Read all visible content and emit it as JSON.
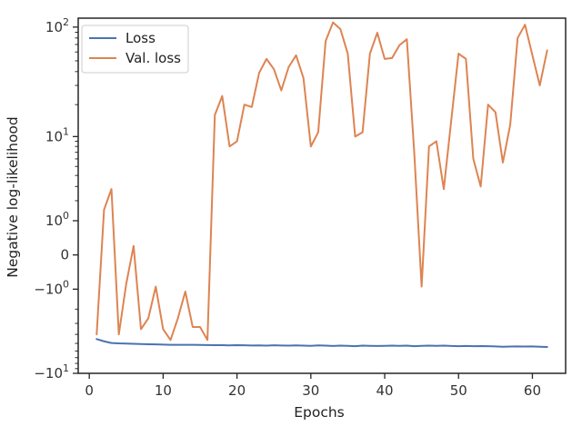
{
  "chart_data": {
    "type": "line",
    "title": "",
    "xlabel": "Epochs",
    "ylabel": "Negative log-likelihood",
    "yscale": "symlog",
    "xlim": [
      -1.5,
      64.5
    ],
    "ylim": [
      -10,
      120
    ],
    "grid": false,
    "legend_position": "top-left",
    "x_ticks": [
      0,
      10,
      20,
      30,
      40,
      50,
      60
    ],
    "x_tick_labels": [
      "0",
      "10",
      "20",
      "30",
      "40",
      "50",
      "60"
    ],
    "y_ticks": [
      -10,
      -1,
      0,
      1,
      10,
      100
    ],
    "y_tick_labels": [
      {
        "base": "−10",
        "exp": "1"
      },
      {
        "base": "−10",
        "exp": "0"
      },
      {
        "base": "0",
        "exp": ""
      },
      {
        "base": "10",
        "exp": "0"
      },
      {
        "base": "10",
        "exp": "1"
      },
      {
        "base": "10",
        "exp": "2"
      }
    ],
    "series": [
      {
        "name": "Loss",
        "color": "#4c72b0",
        "x": [
          1,
          2,
          3,
          4,
          5,
          6,
          7,
          8,
          9,
          10,
          11,
          12,
          13,
          14,
          15,
          16,
          17,
          18,
          19,
          20,
          21,
          22,
          23,
          24,
          25,
          26,
          27,
          28,
          29,
          30,
          31,
          32,
          33,
          34,
          35,
          36,
          37,
          38,
          39,
          40,
          41,
          42,
          43,
          44,
          45,
          46,
          47,
          48,
          49,
          50,
          51,
          52,
          53,
          54,
          55,
          56,
          57,
          58,
          59,
          60,
          61,
          62
        ],
        "y": [
          -4.5,
          -4.75,
          -4.95,
          -5.0,
          -5.02,
          -5.05,
          -5.08,
          -5.1,
          -5.12,
          -5.15,
          -5.17,
          -5.18,
          -5.17,
          -5.18,
          -5.19,
          -5.2,
          -5.22,
          -5.22,
          -5.24,
          -5.22,
          -5.23,
          -5.26,
          -5.25,
          -5.27,
          -5.23,
          -5.26,
          -5.28,
          -5.25,
          -5.27,
          -5.3,
          -5.25,
          -5.27,
          -5.32,
          -5.28,
          -5.3,
          -5.35,
          -5.28,
          -5.3,
          -5.32,
          -5.3,
          -5.27,
          -5.3,
          -5.28,
          -5.35,
          -5.3,
          -5.28,
          -5.3,
          -5.28,
          -5.32,
          -5.35,
          -5.32,
          -5.35,
          -5.33,
          -5.35,
          -5.38,
          -5.42,
          -5.4,
          -5.38,
          -5.4,
          -5.38,
          -5.42,
          -5.45
        ]
      },
      {
        "name": "Val. loss",
        "color": "#dd8452",
        "x": [
          1,
          2,
          3,
          4,
          5,
          6,
          7,
          8,
          9,
          10,
          11,
          12,
          13,
          14,
          15,
          16,
          17,
          18,
          19,
          20,
          21,
          22,
          23,
          24,
          25,
          26,
          27,
          28,
          29,
          30,
          31,
          32,
          33,
          34,
          35,
          36,
          37,
          38,
          39,
          40,
          41,
          42,
          43,
          44,
          45,
          46,
          47,
          48,
          49,
          50,
          51,
          52,
          53,
          54,
          55,
          56,
          57,
          58,
          59,
          60,
          61,
          62
        ],
        "y": [
          -4.0,
          1.5,
          2.8,
          -4.0,
          -0.8,
          0.2,
          -3.5,
          -2.6,
          -0.9,
          -3.5,
          -4.6,
          -2.6,
          -1.1,
          -3.3,
          -3.3,
          -4.6,
          16,
          24,
          8,
          9,
          20,
          19,
          39,
          52,
          42,
          27,
          44,
          56,
          35,
          8,
          11,
          75,
          110,
          96,
          58,
          10,
          11,
          58,
          89,
          52,
          53,
          69,
          78,
          7,
          -0.9,
          8,
          9,
          2.8,
          14,
          58,
          52,
          6,
          3,
          20,
          17,
          5.5,
          13,
          80,
          105,
          56,
          30,
          62
        ]
      }
    ]
  }
}
